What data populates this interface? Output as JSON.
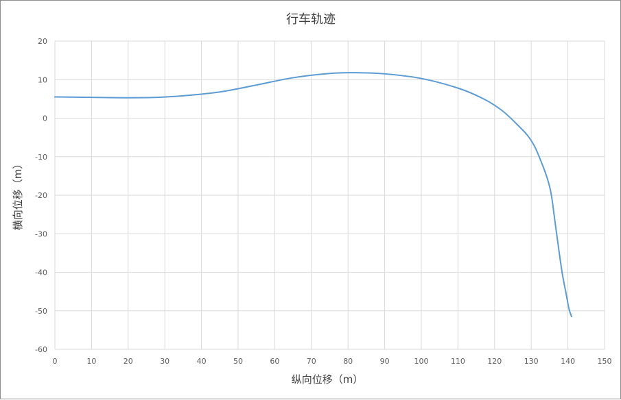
{
  "chart_data": {
    "type": "line",
    "title": "行车轨迹",
    "xlabel": "纵向位移（m）",
    "ylabel": "横向位移（m）",
    "xlim": [
      0,
      150
    ],
    "ylim": [
      -60,
      20
    ],
    "xticks": [
      0,
      10,
      20,
      30,
      40,
      50,
      60,
      70,
      80,
      90,
      100,
      110,
      120,
      130,
      140,
      150
    ],
    "yticks": [
      20,
      10,
      0,
      -10,
      -20,
      -30,
      -40,
      -50,
      -60
    ],
    "grid": true,
    "colors": {
      "line": "#5b9bd5",
      "grid": "#d9d9d9"
    },
    "series": [
      {
        "x": [
          0,
          10,
          20,
          28,
          35,
          45,
          55,
          65,
          75,
          82,
          90,
          100,
          110,
          117,
          122,
          126,
          129,
          131,
          133,
          134.5,
          135.5,
          136.5,
          137.5,
          138.5,
          139.5,
          140.3,
          141
        ],
        "y": [
          5.5,
          5.4,
          5.3,
          5.4,
          5.8,
          6.8,
          8.6,
          10.5,
          11.6,
          11.8,
          11.5,
          10.3,
          7.8,
          5.0,
          2.0,
          -1.5,
          -4.5,
          -7.5,
          -12,
          -16,
          -20,
          -27,
          -34,
          -40.5,
          -45.5,
          -49.5,
          -51.5
        ]
      }
    ]
  }
}
